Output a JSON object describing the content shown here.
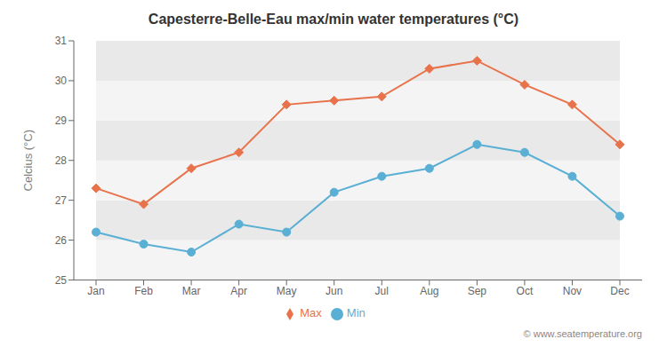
{
  "chart_data": {
    "type": "line",
    "title": "Capesterre-Belle-Eau max/min water temperatures (°C)",
    "ylabel": "Celcius (°C)",
    "categories": [
      "Jan",
      "Feb",
      "Mar",
      "Apr",
      "May",
      "Jun",
      "Jul",
      "Aug",
      "Sep",
      "Oct",
      "Nov",
      "Dec"
    ],
    "series": [
      {
        "name": "Max",
        "color": "#e8724a",
        "marker": "diamond",
        "values": [
          27.3,
          26.9,
          27.8,
          28.2,
          29.4,
          29.5,
          29.6,
          30.3,
          30.5,
          29.9,
          29.4,
          28.4
        ]
      },
      {
        "name": "Min",
        "color": "#5aafd4",
        "marker": "circle",
        "values": [
          26.2,
          25.9,
          25.7,
          26.4,
          26.2,
          27.2,
          27.6,
          27.8,
          28.4,
          28.2,
          27.6,
          26.6
        ]
      }
    ],
    "ylim": [
      25,
      31
    ],
    "yticks": [
      25,
      26,
      27,
      28,
      29,
      30,
      31
    ],
    "grid": false,
    "legend": "bottom",
    "annotations": [
      "© www.seatemperature.org"
    ]
  }
}
